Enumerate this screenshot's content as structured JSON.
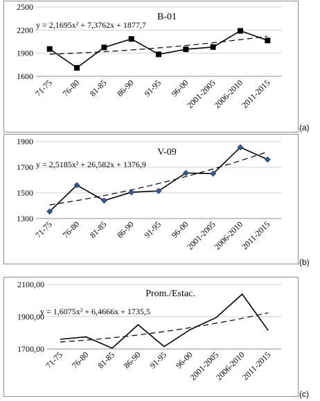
{
  "chart_data": [
    {
      "type": "line",
      "title": "B-01",
      "equation": "y = 2,1695x² + 7,3762x + 1877,7",
      "panel_label": "(a)",
      "categories": [
        "71-75",
        "76-80",
        "81-85",
        "86-90",
        "91-95",
        "96-00",
        "2001-2005",
        "2006-2010",
        "2011-2015"
      ],
      "ylim": [
        1600,
        2500
      ],
      "yticks": [
        "1600",
        "1900",
        "2200",
        "2500"
      ],
      "ytick_values": [
        1600,
        1900,
        2200,
        2500
      ],
      "series": [
        {
          "values": [
            1955,
            1710,
            1975,
            2085,
            1885,
            1950,
            1980,
            2190,
            2065
          ],
          "marker": "square",
          "color": "#000000"
        }
      ],
      "trendline": {
        "type": "polynomial",
        "a": 2.1695,
        "b": 7.3762,
        "c": 1877.7,
        "style": "dashed"
      },
      "grid": "horizontal"
    },
    {
      "type": "line",
      "title": "V-09",
      "equation": "y = 2,5185x² + 26,582x + 1376,9",
      "panel_label": "(b)",
      "categories": [
        "71-75",
        "76-80",
        "81-85",
        "86-90",
        "91-95",
        "96-00",
        "2001-2005",
        "2006-2010",
        "2011-2015"
      ],
      "ylim": [
        1300,
        1900
      ],
      "yticks": [
        "1300",
        "1500",
        "1700",
        "1900"
      ],
      "ytick_values": [
        1300,
        1500,
        1700,
        1900
      ],
      "series": [
        {
          "values": [
            1355,
            1560,
            1440,
            1505,
            1515,
            1655,
            1650,
            1855,
            1760
          ],
          "marker": "diamond",
          "color": "#000000",
          "marker_color": "#2f5b9c"
        }
      ],
      "trendline": {
        "type": "polynomial",
        "a": 2.5185,
        "b": 26.582,
        "c": 1376.9,
        "style": "dashed"
      },
      "grid": "horizontal"
    },
    {
      "type": "line",
      "title": "Prom./Estac.",
      "equation": "y = 1,6075x² + 6,4666x + 1735,5",
      "panel_label": "(c)",
      "categories": [
        "71-75",
        "76-80",
        "81-85",
        "86-90",
        "91-95",
        "96-00",
        "2001-2005",
        "2006-2010",
        "2011-2015"
      ],
      "ylim": [
        1700,
        2100
      ],
      "yticks": [
        "1700,00",
        "1900,00",
        "2100,00"
      ],
      "ytick_values": [
        1700,
        1900,
        2100
      ],
      "series": [
        {
          "values": [
            1760,
            1775,
            1705,
            1850,
            1715,
            1820,
            1895,
            2040,
            1815
          ],
          "marker": "none",
          "color": "#000000"
        }
      ],
      "trendline": {
        "type": "polynomial",
        "a": 1.6075,
        "b": 6.4666,
        "c": 1735.5,
        "style": "dashed"
      },
      "grid": "horizontal"
    }
  ]
}
